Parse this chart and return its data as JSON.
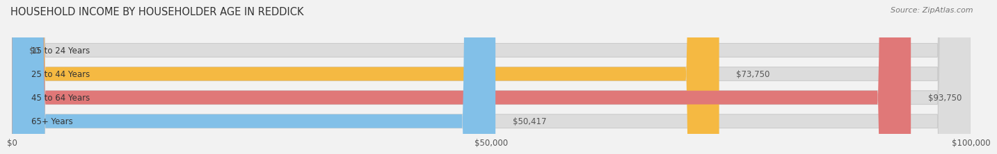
{
  "title": "HOUSEHOLD INCOME BY HOUSEHOLDER AGE IN REDDICK",
  "source": "Source: ZipAtlas.com",
  "categories": [
    "15 to 24 Years",
    "25 to 44 Years",
    "45 to 64 Years",
    "65+ Years"
  ],
  "values": [
    0,
    73750,
    93750,
    50417
  ],
  "bar_colors": [
    "#f48fb1",
    "#f5b942",
    "#e07878",
    "#82c0e8"
  ],
  "bar_bg_color": "#dcdcdc",
  "max_value": 100000,
  "xticks": [
    0,
    50000,
    100000
  ],
  "xticklabels": [
    "$0",
    "$50,000",
    "$100,000"
  ],
  "background_color": "#f2f2f2",
  "label_fontsize": 8.5,
  "title_fontsize": 10.5,
  "source_fontsize": 8,
  "value_label_color": "#555555",
  "category_label_color": "#333333"
}
